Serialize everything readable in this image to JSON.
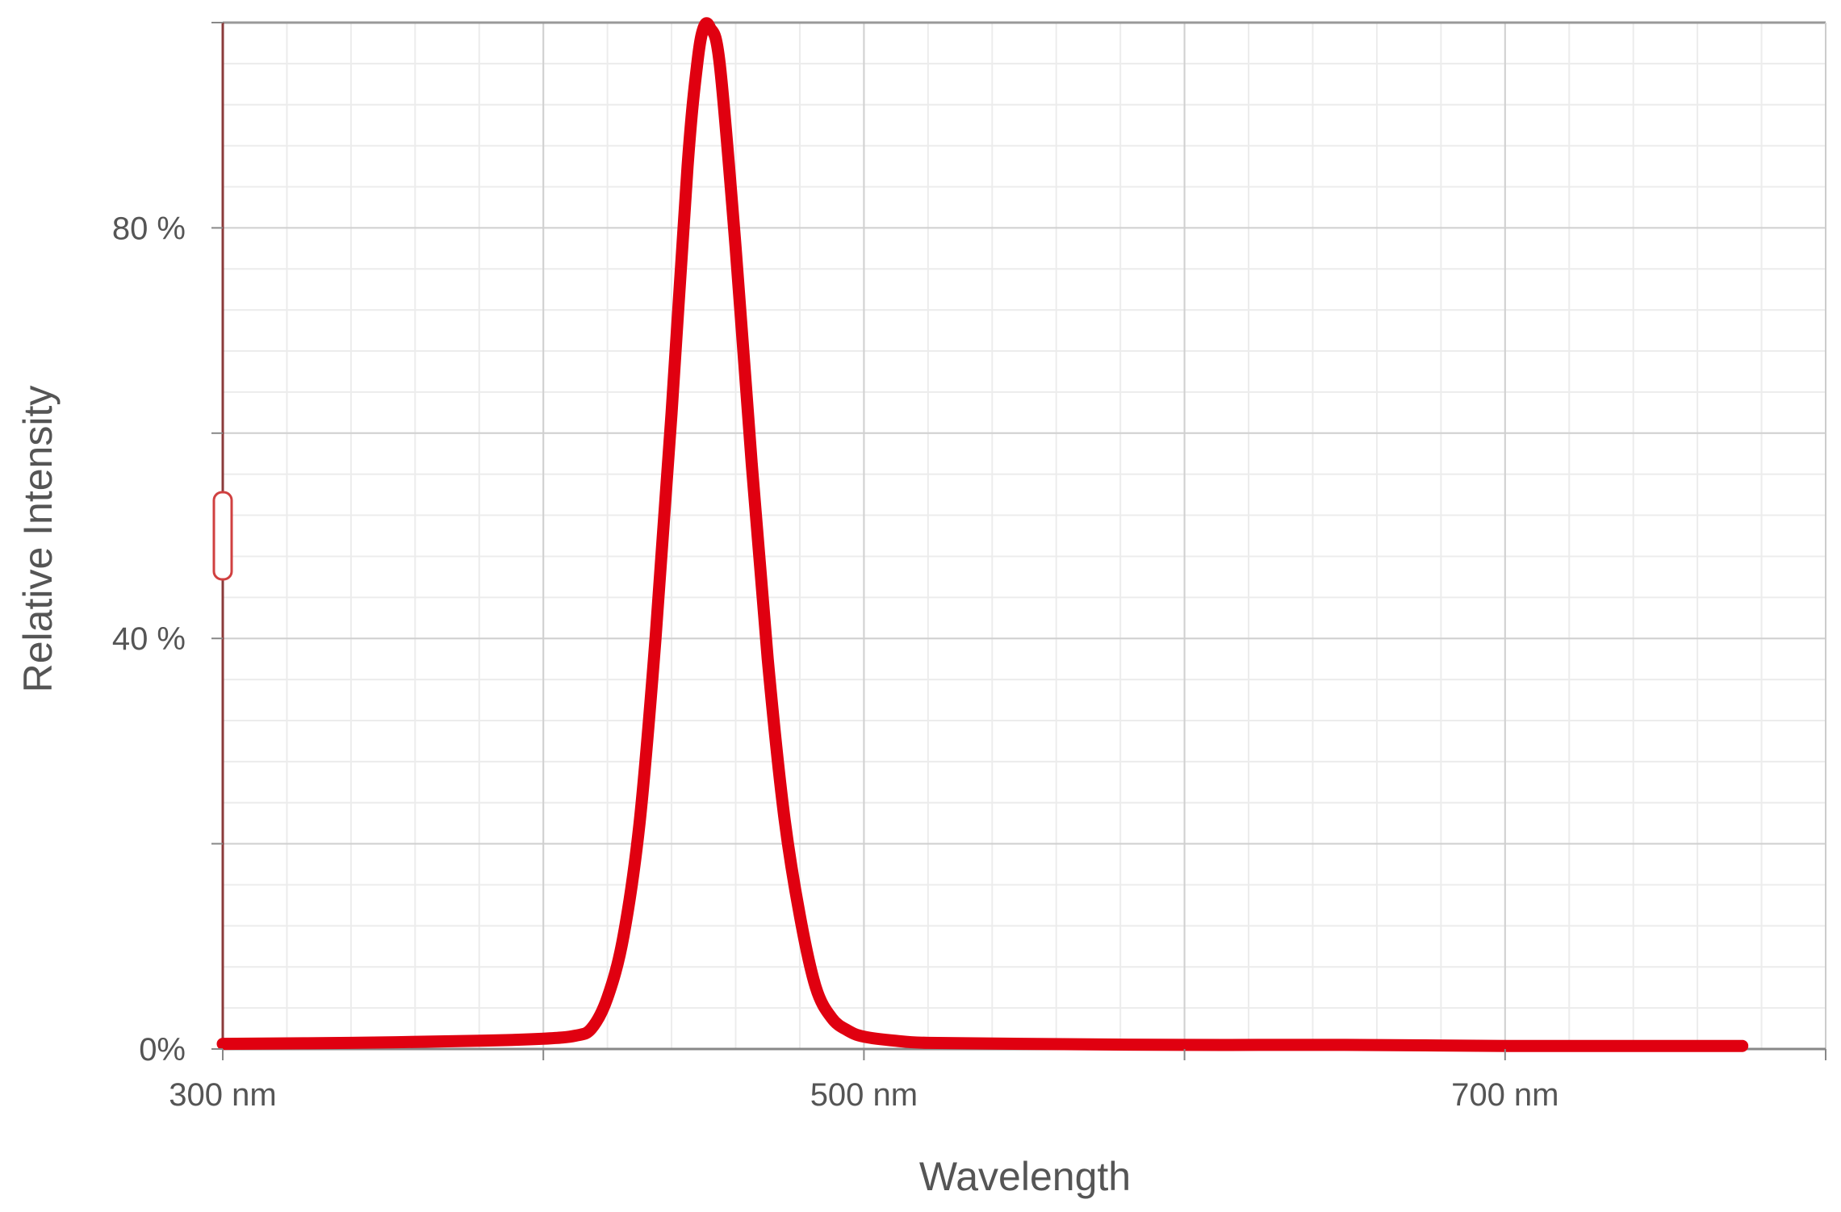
{
  "chart_data": {
    "type": "line",
    "xlabel": "Wavelength",
    "ylabel": "Relative Intensity",
    "xlim": [
      300,
      800
    ],
    "ylim": [
      0,
      100
    ],
    "x_major_ticks": [
      300,
      400,
      500,
      600,
      700,
      800
    ],
    "x_tick_labels": [
      {
        "value": 300,
        "label": "300 nm"
      },
      {
        "value": 500,
        "label": "500 nm"
      },
      {
        "value": 700,
        "label": "700 nm"
      }
    ],
    "y_major_ticks": [
      0,
      20,
      40,
      60,
      80,
      100
    ],
    "y_tick_labels": [
      {
        "value": 0,
        "label": "0%"
      },
      {
        "value": 40,
        "label": "40 %"
      },
      {
        "value": 80,
        "label": "80 %"
      }
    ],
    "grid": true,
    "series": [
      {
        "color": "#e00010",
        "x": [
          300,
          340,
          380,
          400,
          410,
          415,
          420,
          425,
          430,
          435,
          440,
          445,
          448,
          450,
          452,
          455,
          460,
          465,
          470,
          475,
          480,
          485,
          490,
          495,
          500,
          510,
          520,
          550,
          600,
          650,
          700,
          750,
          774
        ],
        "y": [
          0.5,
          0.6,
          0.8,
          1.0,
          1.3,
          2.0,
          5.0,
          11.0,
          22.0,
          40.0,
          62.0,
          86.0,
          96.0,
          99.5,
          99.5,
          96.0,
          78.0,
          57.0,
          38.0,
          23.0,
          13.0,
          6.0,
          3.0,
          1.8,
          1.2,
          0.8,
          0.6,
          0.5,
          0.4,
          0.4,
          0.3,
          0.3,
          0.3
        ]
      }
    ],
    "slider_handle": {
      "axis": "y",
      "value": 50
    }
  }
}
